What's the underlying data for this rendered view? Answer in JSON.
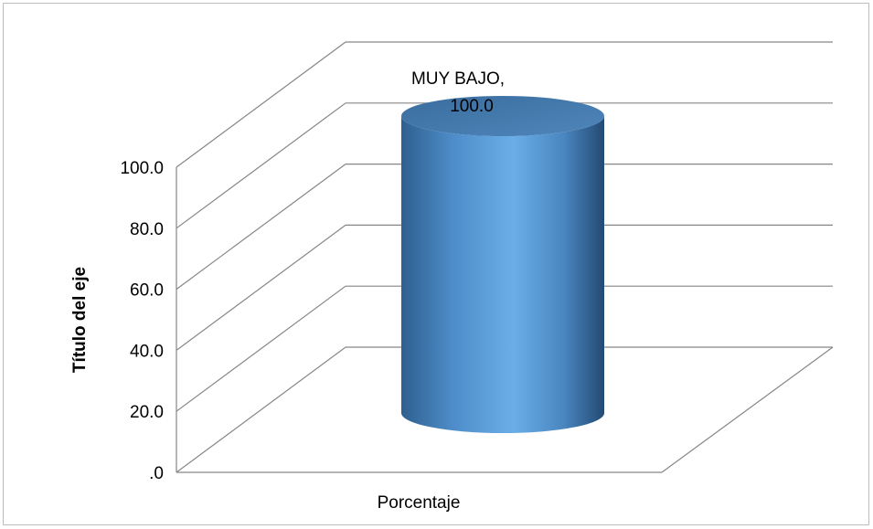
{
  "chart_data": {
    "type": "bar",
    "style": "3d-cylinder",
    "categories": [
      "Porcentaje"
    ],
    "series": [
      {
        "name": "MUY BAJO",
        "values": [
          100.0
        ],
        "color": "#5b9bd5"
      }
    ],
    "data_labels": [
      "MUY BAJO,",
      "100.0"
    ],
    "ylabel": "Título del eje",
    "xlabel": "",
    "ylim": [
      0,
      100
    ],
    "yticks": [
      ".0",
      "20.0",
      "40.0",
      "60.0",
      "80.0",
      "100.0"
    ],
    "grid": true,
    "legend": "none"
  },
  "colors": {
    "grid": "#868686",
    "bar_light": "#6aaee8",
    "bar_dark": "#2f5f8f",
    "frame": "#bdbdbd"
  }
}
